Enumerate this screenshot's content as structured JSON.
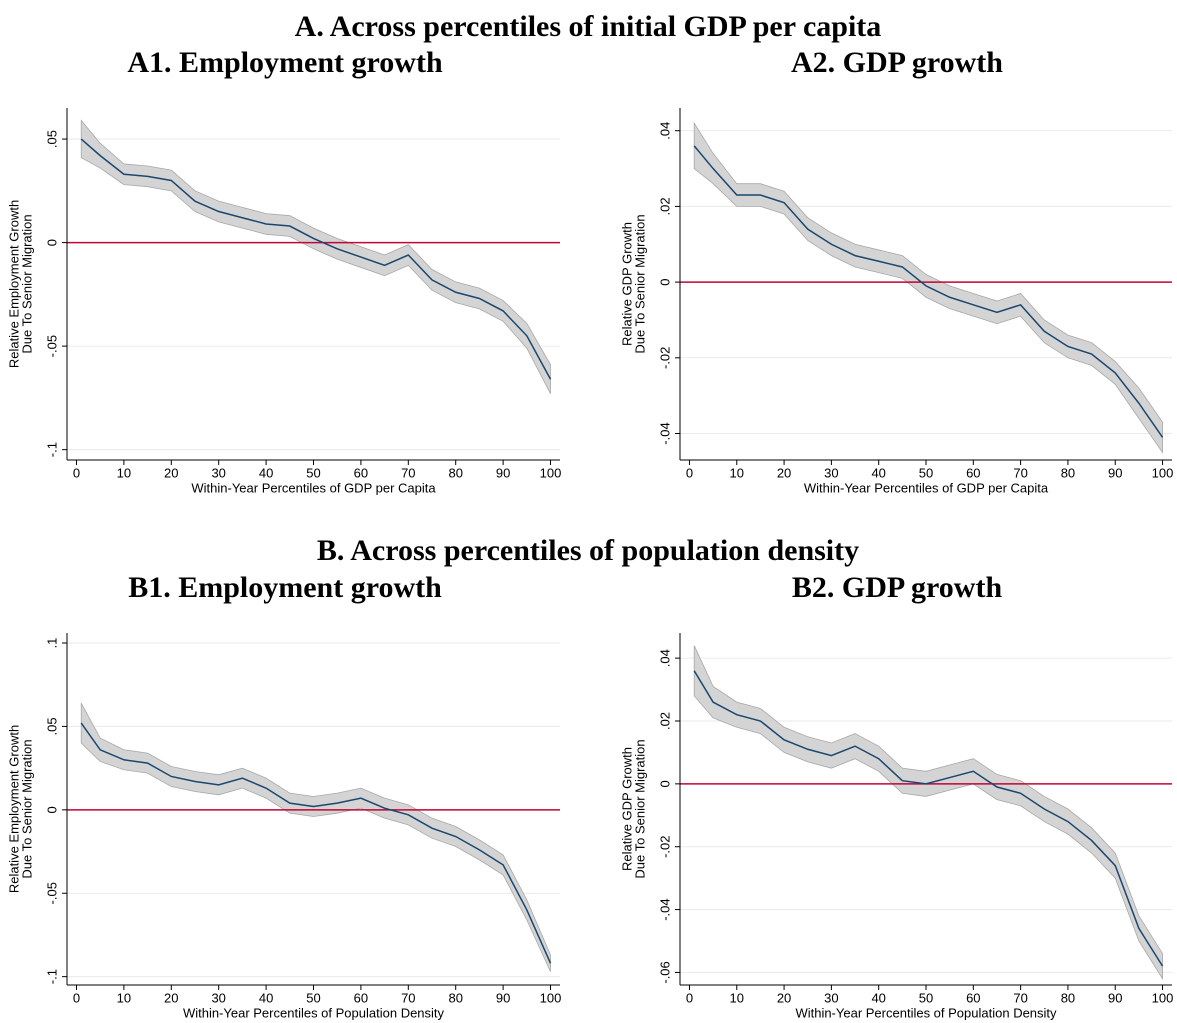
{
  "section_titles": [
    "A. Across percentiles of initial GDP per capita",
    "B. Across percentiles of population density"
  ],
  "chart_data": [
    {
      "type": "line",
      "title": "A1. Employment growth",
      "xlabel": "Within-Year Percentiles of GDP per Capita",
      "ylabel": [
        "Relative Employment Growth",
        "Due To Senior Migration"
      ],
      "x": [
        1,
        5,
        10,
        15,
        20,
        25,
        30,
        35,
        40,
        45,
        50,
        55,
        60,
        65,
        70,
        75,
        80,
        85,
        90,
        95,
        100
      ],
      "values": [
        0.05,
        0.042,
        0.033,
        0.032,
        0.03,
        0.02,
        0.015,
        0.012,
        0.009,
        0.008,
        0.002,
        -0.003,
        -0.007,
        -0.011,
        -0.006,
        -0.018,
        -0.024,
        -0.027,
        -0.033,
        -0.045,
        -0.066
      ],
      "errors": [
        0.009,
        0.006,
        0.005,
        0.005,
        0.005,
        0.005,
        0.005,
        0.005,
        0.005,
        0.005,
        0.005,
        0.005,
        0.005,
        0.005,
        0.005,
        0.005,
        0.005,
        0.005,
        0.005,
        0.006,
        0.007
      ],
      "color": "#1a476f",
      "band_color": "#d4d4d4",
      "hline": 0,
      "hline_color": "#c10534",
      "xlim": [
        -2,
        102
      ],
      "ylim": [
        -0.105,
        0.065
      ],
      "xticks": [
        0,
        10,
        20,
        30,
        40,
        50,
        60,
        70,
        80,
        90,
        100
      ],
      "yticks": [
        {
          "value": -0.1,
          "label": "-.1"
        },
        {
          "value": -0.05,
          "label": "-.05"
        },
        0,
        {
          "value": 0.05,
          "label": ".05"
        }
      ],
      "grid": true
    },
    {
      "type": "line",
      "title": "A2. GDP growth",
      "xlabel": "Within-Year Percentiles of GDP per Capita",
      "ylabel": [
        "Relative GDP Growth",
        "Due To Senior Migration"
      ],
      "x": [
        1,
        5,
        10,
        15,
        20,
        25,
        30,
        35,
        40,
        45,
        50,
        55,
        60,
        65,
        70,
        75,
        80,
        85,
        90,
        95,
        100
      ],
      "values": [
        0.036,
        0.03,
        0.023,
        0.023,
        0.021,
        0.014,
        0.01,
        0.007,
        0.0055,
        0.004,
        -0.001,
        -0.004,
        -0.006,
        -0.008,
        -0.006,
        -0.013,
        -0.017,
        -0.019,
        -0.024,
        -0.032,
        -0.041
      ],
      "errors": [
        0.006,
        0.004,
        0.003,
        0.003,
        0.003,
        0.003,
        0.003,
        0.003,
        0.003,
        0.003,
        0.003,
        0.003,
        0.003,
        0.003,
        0.003,
        0.003,
        0.003,
        0.003,
        0.003,
        0.004,
        0.004
      ],
      "color": "#1a476f",
      "band_color": "#d4d4d4",
      "hline": 0,
      "hline_color": "#c10534",
      "xlim": [
        -2,
        102
      ],
      "ylim": [
        -0.047,
        0.046
      ],
      "xticks": [
        0,
        10,
        20,
        30,
        40,
        50,
        60,
        70,
        80,
        90,
        100
      ],
      "yticks": [
        {
          "value": -0.04,
          "label": "-.04"
        },
        {
          "value": -0.02,
          "label": "-.02"
        },
        0,
        {
          "value": 0.02,
          "label": ".02"
        },
        {
          "value": 0.04,
          "label": ".04"
        }
      ],
      "grid": true
    },
    {
      "type": "line",
      "title": "B1. Employment growth",
      "xlabel": "Within-Year Percentiles of Population Density",
      "ylabel": [
        "Relative Employment Growth",
        "Due To Senior Migration"
      ],
      "x": [
        1,
        5,
        10,
        15,
        20,
        25,
        30,
        35,
        40,
        45,
        50,
        55,
        60,
        65,
        70,
        75,
        80,
        85,
        90,
        95,
        100
      ],
      "values": [
        0.052,
        0.036,
        0.03,
        0.028,
        0.02,
        0.017,
        0.015,
        0.019,
        0.013,
        0.004,
        0.002,
        0.004,
        0.007,
        0.001,
        -0.003,
        -0.011,
        -0.016,
        -0.024,
        -0.033,
        -0.06,
        -0.092
      ],
      "errors": [
        0.012,
        0.007,
        0.006,
        0.006,
        0.006,
        0.006,
        0.006,
        0.006,
        0.006,
        0.006,
        0.006,
        0.006,
        0.006,
        0.006,
        0.006,
        0.006,
        0.006,
        0.006,
        0.006,
        0.006,
        0.005
      ],
      "color": "#1a476f",
      "band_color": "#d4d4d4",
      "hline": 0,
      "hline_color": "#c10534",
      "xlim": [
        -2,
        102
      ],
      "ylim": [
        -0.105,
        0.106
      ],
      "xticks": [
        0,
        10,
        20,
        30,
        40,
        50,
        60,
        70,
        80,
        90,
        100
      ],
      "yticks": [
        {
          "value": -0.1,
          "label": "-.1"
        },
        {
          "value": -0.05,
          "label": "-.05"
        },
        0,
        {
          "value": 0.05,
          "label": ".05"
        },
        {
          "value": 0.1,
          "label": ".1"
        }
      ],
      "grid": true
    },
    {
      "type": "line",
      "title": "B2. GDP growth",
      "xlabel": "Within-Year Percentiles of Population Density",
      "ylabel": [
        "Relative GDP Growth",
        "Due To Senior Migration"
      ],
      "x": [
        1,
        5,
        10,
        15,
        20,
        25,
        30,
        35,
        40,
        45,
        50,
        55,
        60,
        65,
        70,
        75,
        80,
        85,
        90,
        95,
        100
      ],
      "values": [
        0.036,
        0.026,
        0.022,
        0.02,
        0.014,
        0.011,
        0.009,
        0.012,
        0.008,
        0.001,
        0.0,
        0.002,
        0.004,
        -0.001,
        -0.003,
        -0.008,
        -0.012,
        -0.018,
        -0.026,
        -0.046,
        -0.058
      ],
      "errors": [
        0.008,
        0.005,
        0.004,
        0.004,
        0.004,
        0.004,
        0.004,
        0.004,
        0.004,
        0.004,
        0.004,
        0.004,
        0.004,
        0.004,
        0.004,
        0.004,
        0.004,
        0.004,
        0.004,
        0.004,
        0.004
      ],
      "color": "#1a476f",
      "band_color": "#d4d4d4",
      "hline": 0,
      "hline_color": "#c10534",
      "xlim": [
        -2,
        102
      ],
      "ylim": [
        -0.064,
        0.048
      ],
      "xticks": [
        0,
        10,
        20,
        30,
        40,
        50,
        60,
        70,
        80,
        90,
        100
      ],
      "yticks": [
        {
          "value": -0.06,
          "label": "-.06"
        },
        {
          "value": -0.04,
          "label": "-.04"
        },
        {
          "value": -0.02,
          "label": "-.02"
        },
        0,
        {
          "value": 0.02,
          "label": ".02"
        },
        {
          "value": 0.04,
          "label": ".04"
        }
      ],
      "grid": true
    }
  ]
}
